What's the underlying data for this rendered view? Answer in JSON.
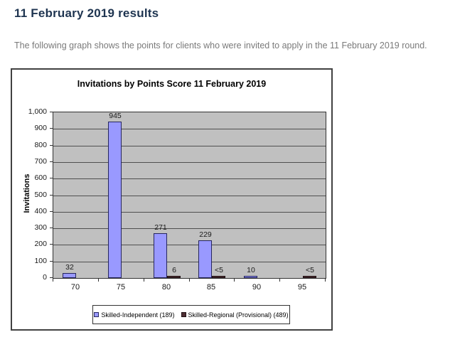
{
  "page": {
    "heading": "11 February 2019 results",
    "intro": "The following graph shows the points for clients who were invited to apply in the 11 February 2019 round."
  },
  "chart_data": {
    "type": "bar",
    "title": "Invitations by Points Score 11 February 2019",
    "xlabel": "",
    "ylabel": "Invitations",
    "categories": [
      "70",
      "75",
      "80",
      "85",
      "90",
      "95"
    ],
    "ylim": [
      0,
      1000
    ],
    "ytick_step": 100,
    "ytick_labels": [
      "0",
      "100",
      "200",
      "300",
      "400",
      "500",
      "600",
      "700",
      "800",
      "900",
      "1,000"
    ],
    "grid": true,
    "legend_position": "bottom",
    "plot_background": "#c0c0c0",
    "series": [
      {
        "name": "Skilled-Independent (189)",
        "color": "#9999ff",
        "border_color": "#26265e",
        "values": [
          32,
          945,
          271,
          229,
          10,
          null
        ],
        "labels": [
          "32",
          "945",
          "271",
          "229",
          "10",
          null
        ]
      },
      {
        "name": "Skilled-Regional (Provisional) (489)",
        "color": "#4f2e33",
        "border_color": "#201014",
        "values": [
          null,
          null,
          6,
          4,
          null,
          4
        ],
        "labels": [
          null,
          null,
          "6",
          "<5",
          null,
          "<5"
        ]
      }
    ]
  }
}
